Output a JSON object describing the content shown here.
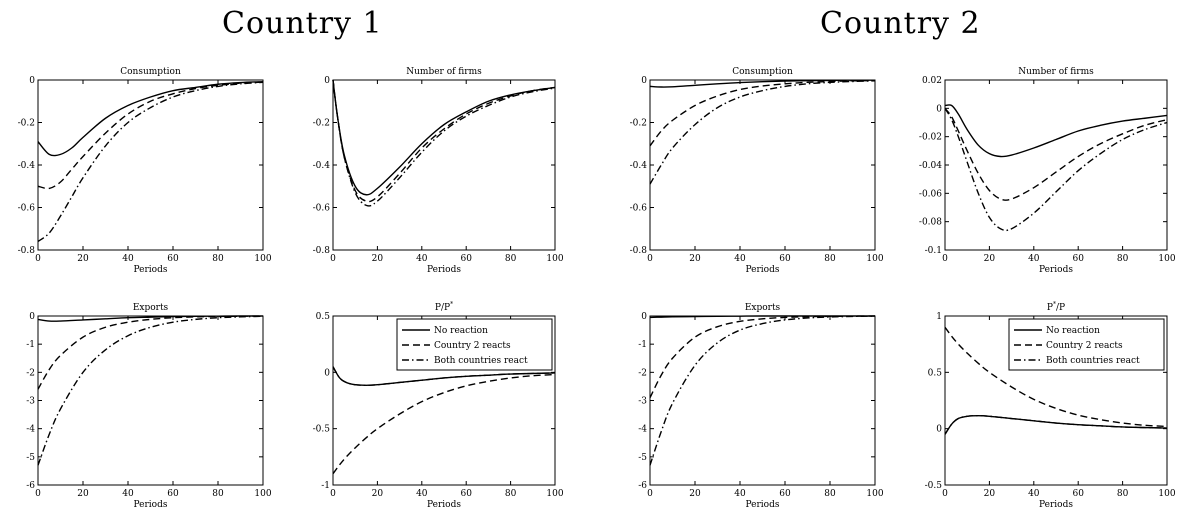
{
  "titles": {
    "country1": "Country 1",
    "country2": "Country 2"
  },
  "legend": {
    "entries": [
      "No reaction",
      "Country 2 reacts",
      "Both countries react"
    ],
    "styles": [
      "solid",
      "dashed",
      "dashdot"
    ]
  },
  "colors": {
    "axes": "#000000",
    "lines": "#000000",
    "background": "#ffffff"
  },
  "chart_data": [
    {
      "type": "line",
      "id": "c1-consumption",
      "title": "Consumption",
      "xlabel": "Periods",
      "ylabel": "",
      "xlim": [
        0,
        100
      ],
      "ylim": [
        -0.8,
        0
      ],
      "xticks": [
        0,
        20,
        40,
        60,
        80,
        100
      ],
      "xtick_labels": [
        "0",
        "20",
        "40",
        "60",
        "80",
        "100"
      ],
      "yticks": [
        -0.8,
        -0.6,
        -0.4,
        -0.2,
        0
      ],
      "ytick_labels": [
        "-0.8",
        "-0.6",
        "-0.4",
        "-0.2",
        "0"
      ],
      "x": [
        0,
        5,
        10,
        15,
        20,
        30,
        40,
        50,
        60,
        70,
        80,
        90,
        100
      ],
      "series": [
        {
          "style": "solid",
          "values": [
            -0.29,
            -0.35,
            -0.35,
            -0.32,
            -0.27,
            -0.18,
            -0.12,
            -0.08,
            -0.05,
            -0.035,
            -0.02,
            -0.012,
            -0.008
          ]
        },
        {
          "style": "dashed",
          "values": [
            -0.5,
            -0.51,
            -0.48,
            -0.42,
            -0.36,
            -0.25,
            -0.16,
            -0.1,
            -0.065,
            -0.04,
            -0.025,
            -0.015,
            -0.01
          ]
        },
        {
          "style": "dashdot",
          "values": [
            -0.76,
            -0.72,
            -0.64,
            -0.55,
            -0.46,
            -0.31,
            -0.2,
            -0.13,
            -0.08,
            -0.05,
            -0.03,
            -0.018,
            -0.011
          ]
        }
      ]
    },
    {
      "type": "line",
      "id": "c1-firms",
      "title": "Number of firms",
      "xlabel": "Periods",
      "ylabel": "",
      "xlim": [
        0,
        100
      ],
      "ylim": [
        -0.8,
        0
      ],
      "xticks": [
        0,
        20,
        40,
        60,
        80,
        100
      ],
      "xtick_labels": [
        "0",
        "20",
        "40",
        "60",
        "80",
        "100"
      ],
      "yticks": [
        -0.8,
        -0.6,
        -0.4,
        -0.2,
        0
      ],
      "ytick_labels": [
        "-0.8",
        "-0.6",
        "-0.4",
        "-0.2",
        "0"
      ],
      "x": [
        0,
        2,
        5,
        10,
        15,
        20,
        30,
        40,
        50,
        60,
        70,
        80,
        90,
        100
      ],
      "series": [
        {
          "style": "solid",
          "values": [
            0,
            -0.17,
            -0.35,
            -0.5,
            -0.54,
            -0.51,
            -0.41,
            -0.3,
            -0.21,
            -0.15,
            -0.1,
            -0.07,
            -0.05,
            -0.035
          ]
        },
        {
          "style": "dashed",
          "values": [
            0,
            -0.17,
            -0.36,
            -0.52,
            -0.57,
            -0.55,
            -0.44,
            -0.32,
            -0.23,
            -0.16,
            -0.11,
            -0.075,
            -0.05,
            -0.035
          ]
        },
        {
          "style": "dashdot",
          "values": [
            0,
            -0.17,
            -0.36,
            -0.53,
            -0.59,
            -0.57,
            -0.46,
            -0.34,
            -0.24,
            -0.17,
            -0.12,
            -0.08,
            -0.055,
            -0.038
          ]
        }
      ]
    },
    {
      "type": "line",
      "id": "c2-consumption",
      "title": "Consumption",
      "xlabel": "Periods",
      "ylabel": "",
      "xlim": [
        0,
        100
      ],
      "ylim": [
        -0.8,
        0
      ],
      "xticks": [
        0,
        20,
        40,
        60,
        80,
        100
      ],
      "xtick_labels": [
        "0",
        "20",
        "40",
        "60",
        "80",
        "100"
      ],
      "yticks": [
        -0.8,
        -0.6,
        -0.4,
        -0.2,
        0
      ],
      "ytick_labels": [
        "-0.8",
        "-0.6",
        "-0.4",
        "-0.2",
        "0"
      ],
      "x": [
        0,
        5,
        10,
        20,
        30,
        40,
        50,
        60,
        70,
        80,
        90,
        100
      ],
      "series": [
        {
          "style": "solid",
          "values": [
            -0.03,
            -0.033,
            -0.032,
            -0.025,
            -0.018,
            -0.012,
            -0.008,
            -0.005,
            -0.003,
            -0.002,
            -0.001,
            -0.001
          ]
        },
        {
          "style": "dashed",
          "values": [
            -0.31,
            -0.24,
            -0.19,
            -0.12,
            -0.075,
            -0.045,
            -0.028,
            -0.018,
            -0.011,
            -0.007,
            -0.004,
            -0.003
          ]
        },
        {
          "style": "dashdot",
          "values": [
            -0.49,
            -0.4,
            -0.32,
            -0.21,
            -0.13,
            -0.08,
            -0.05,
            -0.03,
            -0.018,
            -0.011,
            -0.007,
            -0.004
          ]
        }
      ]
    },
    {
      "type": "line",
      "id": "c2-firms",
      "title": "Number of firms",
      "xlabel": "Periods",
      "ylabel": "",
      "xlim": [
        0,
        100
      ],
      "ylim": [
        -0.1,
        0.02
      ],
      "xticks": [
        0,
        20,
        40,
        60,
        80,
        100
      ],
      "xtick_labels": [
        "0",
        "20",
        "40",
        "60",
        "80",
        "100"
      ],
      "yticks": [
        -0.1,
        -0.08,
        -0.06,
        -0.04,
        -0.02,
        0,
        0.02
      ],
      "ytick_labels": [
        "-0.1",
        "-0.08",
        "-0.06",
        "-0.04",
        "-0.02",
        "0",
        "0.02"
      ],
      "x": [
        0,
        3,
        6,
        10,
        15,
        20,
        25,
        30,
        40,
        50,
        60,
        70,
        80,
        90,
        100
      ],
      "series": [
        {
          "style": "solid",
          "values": [
            0.002,
            0.002,
            -0.004,
            -0.015,
            -0.026,
            -0.032,
            -0.034,
            -0.033,
            -0.028,
            -0.022,
            -0.016,
            -0.012,
            -0.009,
            -0.007,
            -0.005
          ]
        },
        {
          "style": "dashed",
          "values": [
            0,
            -0.006,
            -0.016,
            -0.03,
            -0.046,
            -0.058,
            -0.064,
            -0.064,
            -0.056,
            -0.045,
            -0.034,
            -0.025,
            -0.018,
            -0.012,
            -0.008
          ]
        },
        {
          "style": "dashdot",
          "values": [
            0,
            -0.008,
            -0.02,
            -0.038,
            -0.06,
            -0.077,
            -0.085,
            -0.085,
            -0.074,
            -0.059,
            -0.044,
            -0.032,
            -0.022,
            -0.015,
            -0.01
          ]
        }
      ]
    },
    {
      "type": "line",
      "id": "c1-exports",
      "title": "Exports",
      "xlabel": "Periods",
      "ylabel": "",
      "xlim": [
        0,
        100
      ],
      "ylim": [
        -6,
        0
      ],
      "xticks": [
        0,
        20,
        40,
        60,
        80,
        100
      ],
      "xtick_labels": [
        "0",
        "20",
        "40",
        "60",
        "80",
        "100"
      ],
      "yticks": [
        -6,
        -5,
        -4,
        -3,
        -2,
        -1,
        0
      ],
      "ytick_labels": [
        "-6",
        "-5",
        "-4",
        "-3",
        "-2",
        "-1",
        "0"
      ],
      "x": [
        0,
        5,
        10,
        20,
        30,
        40,
        50,
        60,
        70,
        80,
        90,
        100
      ],
      "series": [
        {
          "style": "solid",
          "values": [
            -0.12,
            -0.18,
            -0.18,
            -0.14,
            -0.1,
            -0.06,
            -0.04,
            -0.02,
            -0.01,
            -0.005,
            0,
            0
          ]
        },
        {
          "style": "dashed",
          "values": [
            -2.6,
            -1.9,
            -1.4,
            -0.75,
            -0.4,
            -0.22,
            -0.12,
            -0.06,
            -0.03,
            -0.015,
            -0.008,
            0
          ]
        },
        {
          "style": "dashdot",
          "values": [
            -5.3,
            -4.2,
            -3.3,
            -2.0,
            -1.2,
            -0.7,
            -0.4,
            -0.22,
            -0.12,
            -0.06,
            -0.03,
            -0.01
          ]
        }
      ]
    },
    {
      "type": "line",
      "id": "c1-relprice",
      "title": "P/P",
      "title_superscript": "*",
      "xlabel": "Periods",
      "ylabel": "",
      "xlim": [
        0,
        100
      ],
      "ylim": [
        -1,
        0.5
      ],
      "xticks": [
        0,
        20,
        40,
        60,
        80,
        100
      ],
      "xtick_labels": [
        "0",
        "20",
        "40",
        "60",
        "80",
        "100"
      ],
      "yticks": [
        -1,
        -0.5,
        0,
        0.5
      ],
      "ytick_labels": [
        "-1",
        "-0.5",
        "0",
        "0.5"
      ],
      "legend": true,
      "x": [
        0,
        3,
        6,
        10,
        15,
        20,
        30,
        40,
        50,
        60,
        70,
        80,
        90,
        100
      ],
      "series": [
        {
          "style": "solid",
          "values": [
            0.05,
            -0.05,
            -0.09,
            -0.11,
            -0.115,
            -0.11,
            -0.09,
            -0.07,
            -0.05,
            -0.035,
            -0.025,
            -0.015,
            -0.01,
            -0.005
          ]
        },
        {
          "style": "dashed",
          "values": [
            -0.9,
            -0.82,
            -0.75,
            -0.67,
            -0.58,
            -0.5,
            -0.37,
            -0.26,
            -0.18,
            -0.12,
            -0.08,
            -0.05,
            -0.03,
            -0.02
          ]
        },
        {
          "style": "dashdot",
          "values": [
            0.05,
            -0.05,
            -0.09,
            -0.11,
            -0.115,
            -0.11,
            -0.09,
            -0.07,
            -0.05,
            -0.035,
            -0.025,
            -0.015,
            -0.01,
            -0.005
          ]
        }
      ]
    },
    {
      "type": "line",
      "id": "c2-exports",
      "title": "Exports",
      "xlabel": "Periods",
      "ylabel": "",
      "xlim": [
        0,
        100
      ],
      "ylim": [
        -6,
        0
      ],
      "xticks": [
        0,
        20,
        40,
        60,
        80,
        100
      ],
      "xtick_labels": [
        "0",
        "20",
        "40",
        "60",
        "80",
        "100"
      ],
      "yticks": [
        -6,
        -5,
        -4,
        -3,
        -2,
        -1,
        0
      ],
      "ytick_labels": [
        "-6",
        "-5",
        "-4",
        "-3",
        "-2",
        "-1",
        "0"
      ],
      "x": [
        0,
        5,
        10,
        20,
        30,
        40,
        50,
        60,
        70,
        80,
        90,
        100
      ],
      "series": [
        {
          "style": "solid",
          "values": [
            -0.05,
            -0.04,
            -0.03,
            -0.02,
            -0.01,
            -0.005,
            0,
            0,
            0,
            0,
            0,
            0
          ]
        },
        {
          "style": "dashed",
          "values": [
            -2.9,
            -2.1,
            -1.5,
            -0.75,
            -0.38,
            -0.19,
            -0.1,
            -0.05,
            -0.025,
            -0.012,
            -0.006,
            0
          ]
        },
        {
          "style": "dashdot",
          "values": [
            -5.3,
            -4.1,
            -3.1,
            -1.75,
            -0.95,
            -0.5,
            -0.27,
            -0.14,
            -0.07,
            -0.035,
            -0.015,
            -0.005
          ]
        }
      ]
    },
    {
      "type": "line",
      "id": "c2-relprice",
      "title": "P/P",
      "title_superscript": "*",
      "xlabel": "Periods",
      "ylabel": "",
      "xlim": [
        0,
        100
      ],
      "ylim": [
        -0.5,
        1
      ],
      "xticks": [
        0,
        20,
        40,
        60,
        80,
        100
      ],
      "xtick_labels": [
        "0",
        "20",
        "40",
        "60",
        "80",
        "100"
      ],
      "yticks": [
        -0.5,
        0,
        0.5,
        1
      ],
      "ytick_labels": [
        "-0.5",
        "0",
        "0.5",
        "1"
      ],
      "legend": true,
      "x": [
        0,
        3,
        6,
        10,
        15,
        20,
        30,
        40,
        50,
        60,
        70,
        80,
        90,
        100
      ],
      "series": [
        {
          "style": "solid",
          "values": [
            -0.05,
            0.04,
            0.09,
            0.11,
            0.115,
            0.11,
            0.09,
            0.07,
            0.05,
            0.035,
            0.025,
            0.015,
            0.01,
            0.005
          ]
        },
        {
          "style": "dashed",
          "values": [
            0.9,
            0.82,
            0.75,
            0.67,
            0.58,
            0.5,
            0.37,
            0.26,
            0.18,
            0.12,
            0.08,
            0.05,
            0.03,
            0.02
          ]
        },
        {
          "style": "dashdot",
          "values": [
            -0.05,
            0.04,
            0.09,
            0.11,
            0.115,
            0.11,
            0.09,
            0.07,
            0.05,
            0.035,
            0.025,
            0.015,
            0.01,
            0.005
          ]
        }
      ]
    }
  ]
}
